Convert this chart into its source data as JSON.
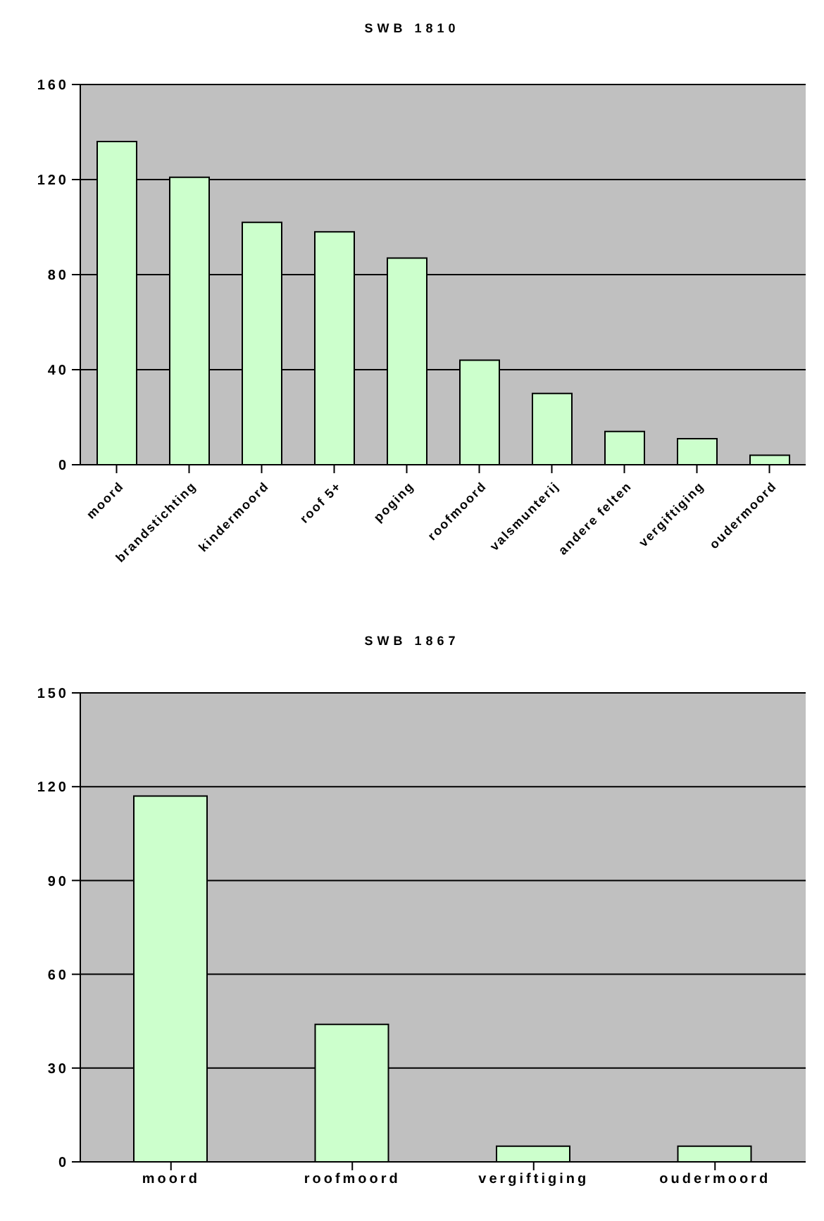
{
  "chart_data": [
    {
      "type": "bar",
      "title": "SWB 1810",
      "categories": [
        "moord",
        "brandstichting",
        "kindermoord",
        "roof 5+",
        "poging",
        "roofmoord",
        "valsmunterij",
        "andere felten",
        "vergiftiging",
        "oudermoord"
      ],
      "values": [
        136,
        121,
        102,
        98,
        87,
        44,
        30,
        14,
        11,
        4
      ],
      "color": "#ccffcc",
      "ylim": [
        0,
        160
      ],
      "yticks": [
        0,
        40,
        80,
        120,
        160
      ],
      "grid": "y"
    },
    {
      "type": "bar",
      "title": "SWB 1867",
      "categories": [
        "moord",
        "roofmoord",
        "vergiftiging",
        "oudermoord"
      ],
      "values": [
        117,
        44,
        5,
        5
      ],
      "color": "#ccffcc",
      "ylim": [
        0,
        150
      ],
      "yticks": [
        0,
        30,
        60,
        90,
        120,
        150
      ],
      "grid": "y"
    }
  ]
}
